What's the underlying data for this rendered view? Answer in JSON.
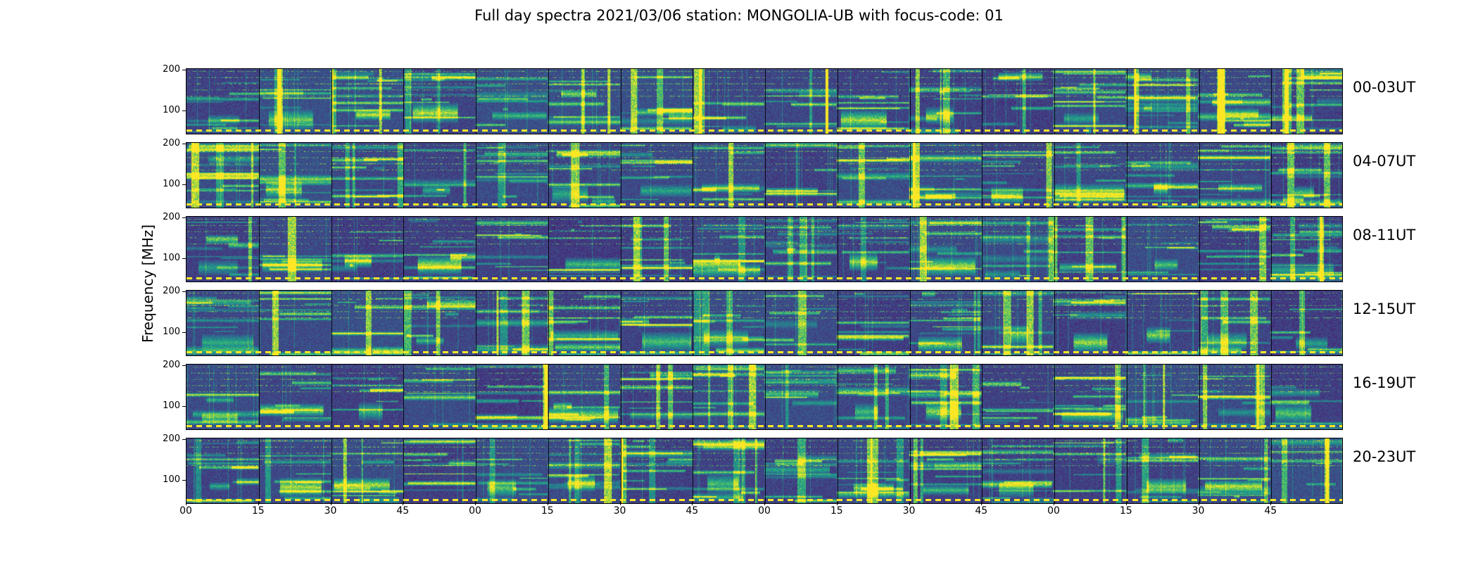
{
  "chart_data": {
    "type": "heatmap",
    "title": "Full day spectra 2021/03/06 station: MONGOLIA-UB with focus-code: 01",
    "ylabel": "Frequency [MHz]",
    "xlabel": "",
    "colormap": "viridis",
    "y_ticks": [
      "200",
      "100"
    ],
    "ylim": [
      45,
      200
    ],
    "x_ticks": [
      "00",
      "15",
      "30",
      "45",
      "00",
      "15",
      "30",
      "45",
      "00",
      "15",
      "30",
      "45",
      "00",
      "15",
      "30",
      "45"
    ],
    "blocks_per_row": 16,
    "block_minutes": 15,
    "panels": [
      {
        "label": "00-03UT",
        "hours": [
          0,
          1,
          2,
          3
        ]
      },
      {
        "label": "04-07UT",
        "hours": [
          4,
          5,
          6,
          7
        ]
      },
      {
        "label": "08-11UT",
        "hours": [
          8,
          9,
          10,
          11
        ]
      },
      {
        "label": "12-15UT",
        "hours": [
          12,
          13,
          14,
          15
        ]
      },
      {
        "label": "16-19UT",
        "hours": [
          16,
          17,
          18,
          19
        ]
      },
      {
        "label": "20-23UT",
        "hours": [
          20,
          21,
          22,
          23
        ]
      }
    ]
  },
  "colors": {
    "background": "#3b2a62",
    "dash": "#fde725",
    "viridis": [
      "#440154",
      "#46327e",
      "#365c8d",
      "#277f8e",
      "#1fa187",
      "#4ac16d",
      "#a0da39",
      "#fde725"
    ]
  }
}
